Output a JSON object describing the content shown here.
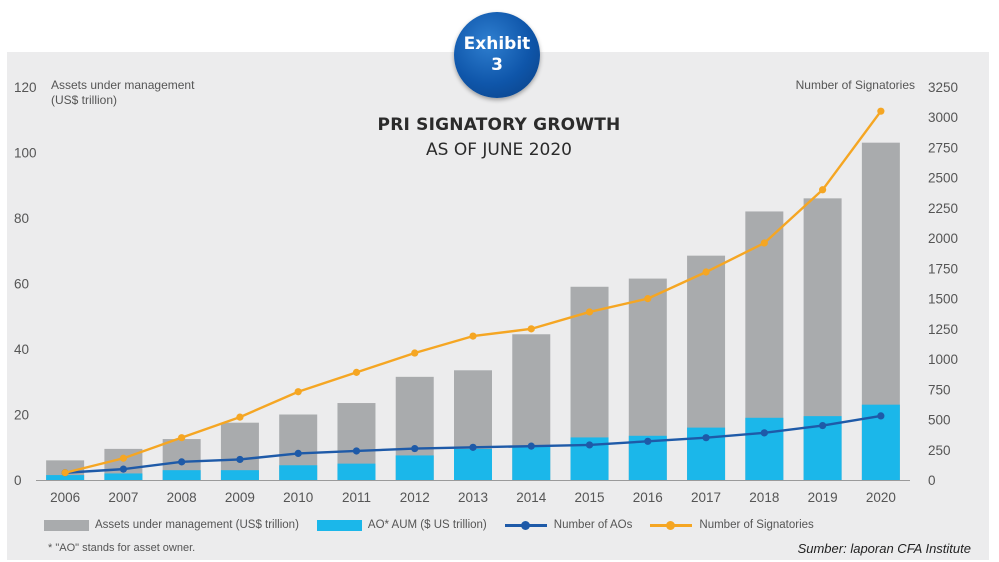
{
  "badge": {
    "line1": "Exhibit",
    "line2": "3"
  },
  "chart_data": {
    "type": "bar",
    "title": "PRI SIGNATORY GROWTH",
    "subtitle": "AS OF JUNE 2020",
    "categories": [
      "2006",
      "2007",
      "2008",
      "2009",
      "2010",
      "2011",
      "2012",
      "2013",
      "2014",
      "2015",
      "2016",
      "2017",
      "2018",
      "2019",
      "2020"
    ],
    "left_axis": {
      "label_line1": "Assets under management",
      "label_line2": "(US$ trillion)",
      "range": [
        0,
        120
      ],
      "ticks": [
        "0",
        "20",
        "40",
        "60",
        "80",
        "100",
        "120"
      ]
    },
    "right_axis": {
      "label": "Number of Signatories",
      "range": [
        0,
        3250
      ],
      "ticks": [
        "0",
        "250",
        "500",
        "750",
        "1000",
        "1250",
        "1500",
        "1750",
        "2000",
        "2250",
        "2500",
        "2750",
        "3000",
        "3250"
      ]
    },
    "series": [
      {
        "name": "Assets under management (US$ trillion)",
        "kind": "bar",
        "axis": "left",
        "color": "#a9abad",
        "values": [
          6,
          9.5,
          12.5,
          17.5,
          20,
          23.5,
          31.5,
          33.5,
          44.5,
          59,
          61.5,
          68.5,
          82,
          86,
          103
        ]
      },
      {
        "name": "AO* AUM ($ US trillion)",
        "kind": "bar",
        "axis": "left",
        "color": "#1bb7ea",
        "values": [
          1.5,
          2,
          3,
          3,
          4.5,
          5,
          7.5,
          9.5,
          10.5,
          13,
          13.5,
          16,
          19,
          19.5,
          23
        ]
      },
      {
        "name": "Number of AOs",
        "kind": "line",
        "axis": "right",
        "color": "#1e5aa8",
        "values": [
          60,
          90,
          150,
          170,
          220,
          240,
          260,
          270,
          280,
          290,
          320,
          350,
          390,
          450,
          530
        ]
      },
      {
        "name": "Number of Signatories",
        "kind": "line",
        "axis": "right",
        "color": "#f5a623",
        "values": [
          60,
          180,
          350,
          520,
          730,
          890,
          1050,
          1190,
          1250,
          1390,
          1500,
          1720,
          1960,
          2400,
          3050
        ]
      }
    ]
  },
  "footnote": "* \"AO\" stands for asset owner.",
  "source": "Sumber: laporan CFA Institute"
}
